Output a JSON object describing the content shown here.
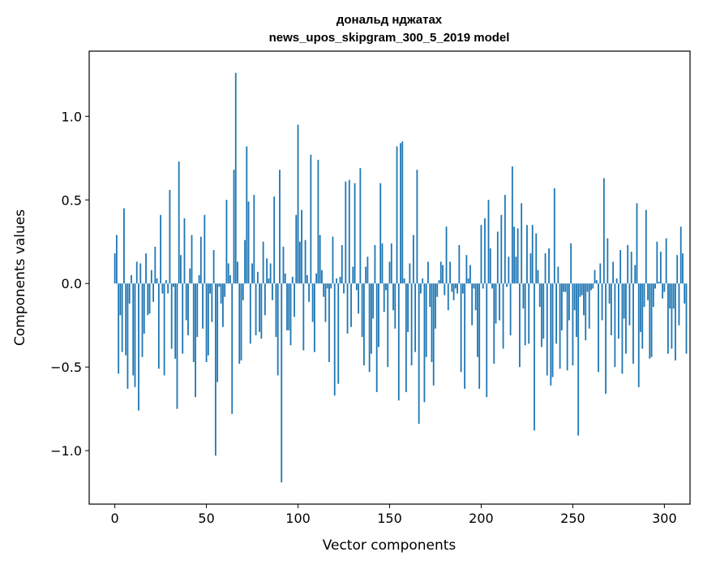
{
  "chart_data": {
    "type": "bar",
    "title": "дональд нджатах",
    "subtitle": "news_upos_skipgram_300_5_2019 model",
    "xlabel": "Vector components",
    "ylabel": "Components values",
    "xlim": [
      -14,
      314
    ],
    "ylim": [
      -1.32,
      1.39
    ],
    "xticks": [
      0,
      50,
      100,
      150,
      200,
      250,
      300
    ],
    "xtick_labels": [
      "0",
      "50",
      "100",
      "150",
      "200",
      "250",
      "300"
    ],
    "yticks": [
      -1.0,
      -0.5,
      0.0,
      0.5,
      1.0
    ],
    "ytick_labels": [
      "−1.0",
      "−0.5",
      "0.0",
      "0.5",
      "1.0"
    ],
    "grid": false,
    "bar_color": "#1f77b4",
    "series": [
      {
        "name": "components",
        "values": [
          0.18,
          0.29,
          -0.54,
          -0.19,
          -0.41,
          0.45,
          -0.43,
          -0.63,
          -0.12,
          0.05,
          -0.55,
          -0.62,
          0.13,
          -0.76,
          0.12,
          -0.44,
          -0.3,
          0.18,
          -0.19,
          -0.18,
          0.08,
          -0.11,
          0.22,
          0.03,
          -0.51,
          0.41,
          -0.06,
          -0.55,
          0.02,
          -0.06,
          0.56,
          -0.39,
          -0.02,
          -0.45,
          -0.75,
          0.73,
          0.17,
          -0.42,
          0.39,
          -0.22,
          -0.31,
          0.09,
          0.29,
          -0.47,
          -0.68,
          -0.32,
          0.05,
          0.28,
          -0.27,
          0.41,
          -0.47,
          -0.43,
          -0.06,
          -0.23,
          0.2,
          -1.03,
          -0.59,
          -0.02,
          -0.12,
          -0.26,
          -0.08,
          0.5,
          0.12,
          0.05,
          -0.78,
          0.68,
          1.26,
          0.13,
          -0.48,
          -0.46,
          -0.1,
          0.26,
          0.82,
          0.49,
          -0.36,
          0.12,
          0.53,
          -0.31,
          0.07,
          -0.29,
          -0.33,
          0.25,
          -0.19,
          0.15,
          0.03,
          0.12,
          -0.1,
          0.52,
          -0.32,
          -0.55,
          0.68,
          -1.19,
          0.22,
          0.06,
          -0.28,
          -0.28,
          -0.37,
          0.04,
          -0.2,
          0.41,
          0.95,
          0.25,
          0.44,
          -0.4,
          0.26,
          0.05,
          -0.11,
          0.77,
          -0.23,
          -0.41,
          0.06,
          0.74,
          0.29,
          0.08,
          -0.08,
          -0.23,
          -0.03,
          -0.47,
          -0.03,
          0.28,
          -0.67,
          0.03,
          -0.6,
          0.04,
          0.23,
          -0.06,
          0.61,
          -0.3,
          0.62,
          -0.26,
          0.1,
          0.6,
          -0.04,
          -0.18,
          0.69,
          -0.32,
          -0.49,
          0.1,
          0.16,
          -0.53,
          -0.42,
          -0.21,
          0.23,
          -0.65,
          -0.38,
          0.6,
          0.24,
          -0.17,
          -0.04,
          -0.5,
          0.13,
          0.24,
          -0.16,
          -0.27,
          0.82,
          -0.7,
          0.84,
          0.85,
          0.03,
          -0.65,
          -0.29,
          0.12,
          -0.49,
          0.29,
          -0.41,
          0.68,
          -0.84,
          -0.06,
          0.03,
          -0.71,
          -0.44,
          0.13,
          -0.14,
          -0.47,
          -0.61,
          -0.27,
          -0.08,
          0.02,
          0.13,
          0.11,
          -0.07,
          0.34,
          -0.16,
          0.13,
          -0.05,
          -0.1,
          -0.03,
          -0.06,
          0.23,
          -0.53,
          -0.06,
          -0.63,
          0.17,
          0.03,
          0.11,
          -0.25,
          -0.03,
          -0.16,
          -0.44,
          -0.63,
          0.35,
          -0.03,
          0.39,
          -0.68,
          0.5,
          0.21,
          -0.03,
          -0.48,
          -0.24,
          0.31,
          -0.22,
          0.41,
          -0.39,
          0.53,
          -0.02,
          0.16,
          -0.31,
          0.7,
          0.34,
          0.16,
          0.33,
          -0.5,
          0.48,
          -0.15,
          -0.37,
          0.35,
          -0.36,
          0.18,
          0.35,
          -0.88,
          0.3,
          0.08,
          -0.14,
          -0.38,
          -0.33,
          0.18,
          -0.55,
          0.21,
          -0.61,
          -0.56,
          0.57,
          -0.36,
          0.1,
          -0.51,
          -0.28,
          -0.05,
          -0.05,
          -0.52,
          -0.22,
          0.24,
          -0.49,
          -0.16,
          -0.32,
          -0.91,
          -0.08,
          -0.07,
          -0.19,
          -0.34,
          -0.05,
          -0.27,
          -0.04,
          -0.03,
          0.08,
          0.02,
          -0.53,
          0.12,
          -0.22,
          0.63,
          -0.66,
          0.27,
          -0.12,
          -0.31,
          0.13,
          -0.5,
          0.03,
          -0.33,
          0.2,
          -0.54,
          -0.21,
          -0.42,
          0.23,
          -0.25,
          0.19,
          -0.48,
          0.11,
          0.48,
          -0.62,
          -0.29,
          -0.39,
          -0.14,
          0.44,
          -0.1,
          -0.45,
          -0.44,
          -0.14,
          -0.03,
          0.25,
          0.01,
          0.19,
          -0.09,
          -0.05,
          0.27,
          -0.42,
          -0.15,
          -0.39,
          -0.15,
          -0.46,
          0.17,
          -0.25,
          0.34,
          0.18,
          -0.12,
          -0.42
        ]
      }
    ]
  }
}
